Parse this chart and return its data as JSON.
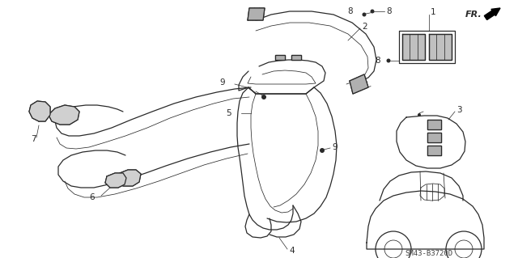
{
  "bg_color": "#ffffff",
  "line_color": "#2a2a2a",
  "diagram_code": "SM43-B3720D",
  "fig_width": 6.4,
  "fig_height": 3.19,
  "dpi": 100
}
